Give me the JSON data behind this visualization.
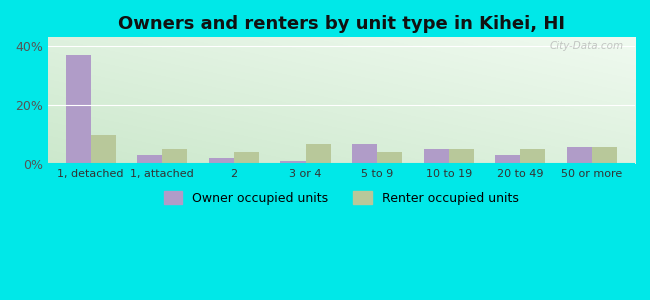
{
  "title": "Owners and renters by unit type in Kihei, HI",
  "categories": [
    "1, detached",
    "1, attached",
    "2",
    "3 or 4",
    "5 to 9",
    "10 to 19",
    "20 to 49",
    "50 or more"
  ],
  "owner_values": [
    37.0,
    3.0,
    2.0,
    1.0,
    7.0,
    5.0,
    3.0,
    6.0
  ],
  "renter_values": [
    10.0,
    5.0,
    4.0,
    7.0,
    4.0,
    5.0,
    5.0,
    6.0
  ],
  "owner_color": "#b09cc8",
  "renter_color": "#b8c89a",
  "background_color": "#00e8e8",
  "title_fontsize": 13,
  "ylabel_ticks": [
    "0%",
    "20%",
    "40%"
  ],
  "yticks": [
    0,
    20,
    40
  ],
  "ylim": [
    0,
    43
  ],
  "bar_width": 0.35,
  "legend_owner": "Owner occupied units",
  "legend_renter": "Renter occupied units",
  "watermark": "City-Data.com"
}
